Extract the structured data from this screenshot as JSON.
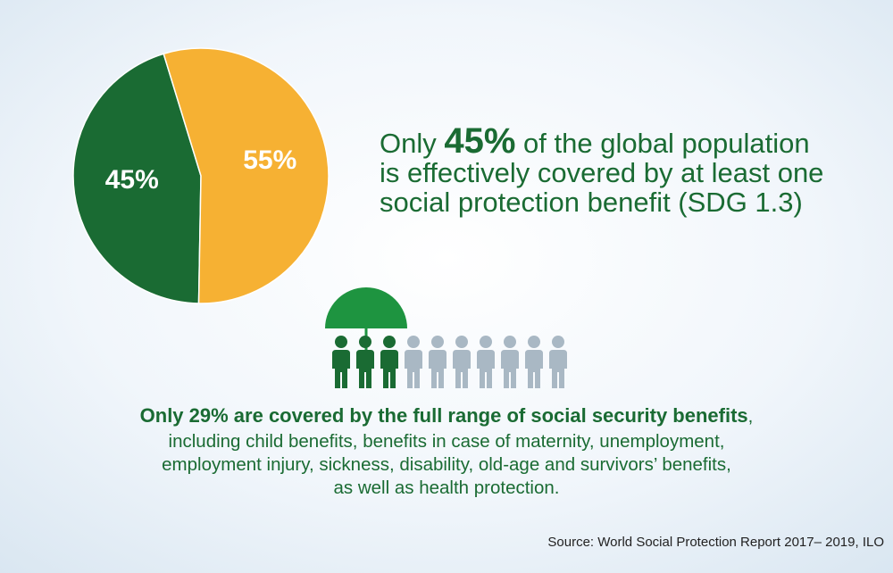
{
  "chart_data": {
    "type": "pie",
    "values": [
      45,
      55
    ],
    "value_labels": [
      "45%",
      "55%"
    ],
    "colors": [
      "#1a6b33",
      "#f6b133"
    ],
    "headline": {
      "line1_start": "Only ",
      "line1_highlight": "45%",
      "line1_end": " of the global population",
      "line2": "is effectively covered by at least one",
      "line3": "social protection benefit (SDG 1.3)"
    },
    "note": {
      "bold": "Only 29% are covered by the full range of social security benefits",
      "bold_tail": ",",
      "lines": [
        "including child benefits, benefits in case of maternity, unemployment,",
        "employment injury, sickness, disability, old-age and survivors’ benefits,",
        "as well as health protection."
      ]
    },
    "source": "Source: World Social Protection Report 2017– 2019, ILO"
  }
}
